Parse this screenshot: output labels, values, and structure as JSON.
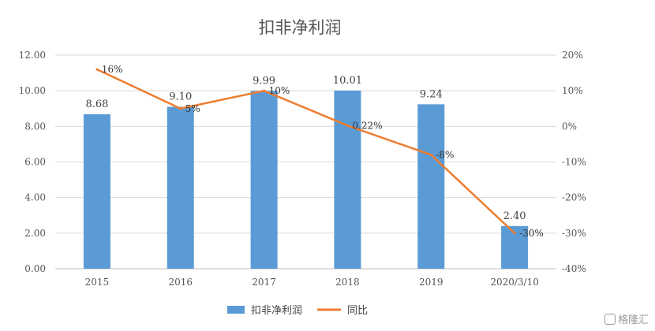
{
  "chart_data": {
    "type": "bar",
    "title": "扣非净利润",
    "categories": [
      "2015",
      "2016",
      "2017",
      "2018",
      "2019",
      "2020/3/10"
    ],
    "series": [
      {
        "name": "扣非净利润",
        "type": "bar",
        "axis": "left",
        "color": "#5b9bd5",
        "values": [
          8.68,
          9.1,
          9.99,
          10.01,
          9.24,
          2.4
        ],
        "labels": [
          "8.68",
          "9.10",
          "9.99",
          "10.01",
          "9.24",
          "2.40"
        ]
      },
      {
        "name": "同比",
        "type": "line",
        "axis": "right",
        "color": "#ed7d31",
        "values": [
          16,
          5,
          10,
          0.22,
          -8,
          -30
        ],
        "labels": [
          "16%",
          "5%",
          "10%",
          "0.22%",
          "-8%",
          "-30%"
        ]
      }
    ],
    "y_left": {
      "ylim": [
        0,
        12
      ],
      "ticks": [
        "0.00",
        "2.00",
        "4.00",
        "6.00",
        "8.00",
        "10.00",
        "12.00"
      ]
    },
    "y_right": {
      "ylim": [
        -40,
        20
      ],
      "ticks": [
        "-40%",
        "-30%",
        "-20%",
        "-10%",
        "0%",
        "10%",
        "20%"
      ]
    },
    "grid": true,
    "legend": "bottom"
  },
  "watermark": {
    "text": "格隆汇"
  }
}
